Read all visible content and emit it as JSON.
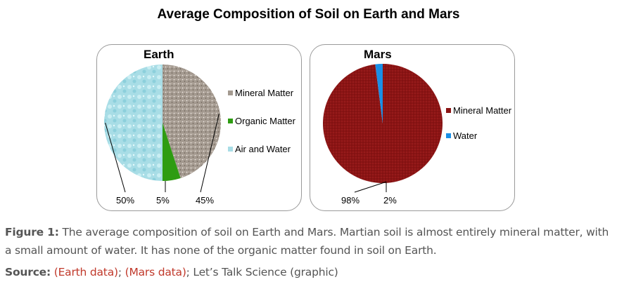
{
  "title": "Average Composition of Soil on Earth and Mars",
  "chart_data": [
    {
      "type": "pie",
      "title": "Earth",
      "categories": [
        "Mineral Matter",
        "Organic Matter",
        "Air and Water"
      ],
      "values": [
        45,
        5,
        50
      ],
      "labels": [
        "45%",
        "5%",
        "50%"
      ],
      "colors": [
        "#a49a90",
        "#2e9c12",
        "#a8dde6"
      ],
      "legend": "right"
    },
    {
      "type": "pie",
      "title": "Mars",
      "categories": [
        "Mineral Matter",
        "Water"
      ],
      "values": [
        98,
        2
      ],
      "labels": [
        "98%",
        "2%"
      ],
      "colors": [
        "#8b1414",
        "#1a8fe6"
      ],
      "legend": "right"
    }
  ],
  "caption": {
    "label": "Figure 1:",
    "text": "The average composition of soil on Earth and Mars. Martian soil is almost entirely mineral matter, with a small amount of water. It has none of the organic matter found in soil on Earth."
  },
  "source": {
    "label": "Source:",
    "earth_link": "(Earth data)",
    "sep1": ";",
    "mars_link": "(Mars data)",
    "rest": "; Let’s Talk Science (graphic)"
  }
}
